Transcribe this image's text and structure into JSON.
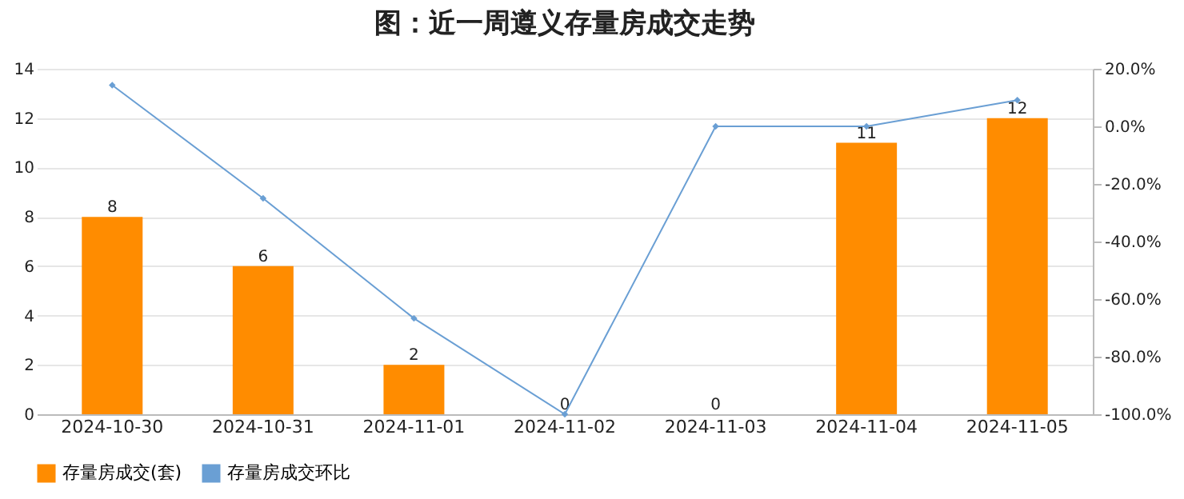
{
  "chart_data": {
    "type": "bar",
    "title": "图：近一周遵义存量房成交走势",
    "categories": [
      "2024-10-30",
      "2024-10-31",
      "2024-11-01",
      "2024-11-02",
      "2024-11-03",
      "2024-11-04",
      "2024-11-05"
    ],
    "series": [
      {
        "name": "存量房成交(套)",
        "color": "#ff8c00",
        "values": [
          8,
          6,
          2,
          0,
          0,
          11,
          12
        ],
        "value_labels": [
          "8",
          "6",
          "2",
          "0",
          "0",
          "11",
          "12"
        ]
      },
      {
        "name": "存量房成交环比",
        "type": "line",
        "axis": "y2",
        "color": "#6a9fd4",
        "values": [
          14.3,
          -25,
          -66.7,
          -100,
          0,
          0,
          9.1
        ]
      }
    ],
    "ylim": [
      0,
      14
    ],
    "yticks": [
      0,
      2,
      4,
      6,
      8,
      10,
      12,
      14
    ],
    "y2lim": [
      -100,
      20
    ],
    "y2ticks": [
      {
        "value": -100,
        "label": "-100.0%"
      },
      {
        "value": -80,
        "label": "-80.0%"
      },
      {
        "value": -60,
        "label": "-60.0%"
      },
      {
        "value": -40,
        "label": "-40.0%"
      },
      {
        "value": -20,
        "label": "-20.0%"
      },
      {
        "value": 0,
        "label": "0.0%"
      },
      {
        "value": 20,
        "label": "20.0%"
      }
    ],
    "grid": "y",
    "legend": "bottom",
    "marker": "diamond",
    "line_style": "solid"
  }
}
